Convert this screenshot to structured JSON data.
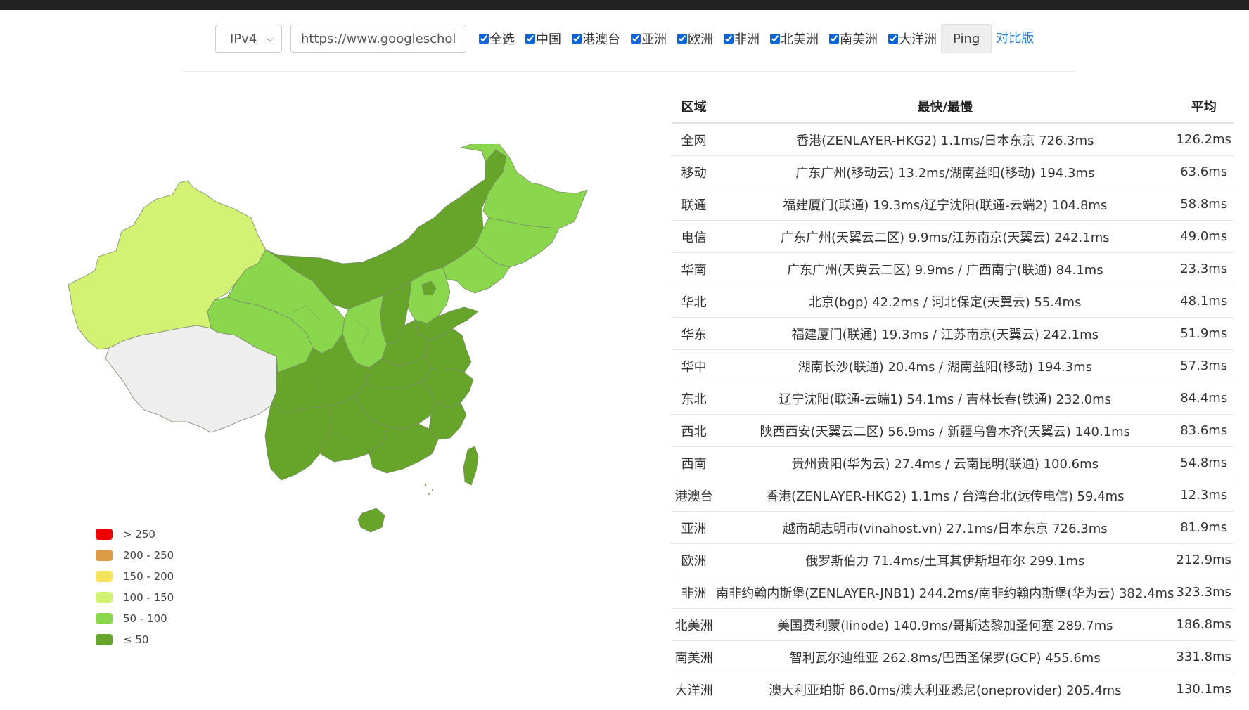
{
  "toolbar": {
    "ip_select": "IPv4",
    "url_value": "https://www.googlescholar.com",
    "checkboxes": [
      "全选",
      "中国",
      "港澳台",
      "亚洲",
      "欧洲",
      "非洲",
      "北美洲",
      "南美洲",
      "大洋洲"
    ],
    "ping_label": "Ping",
    "compare_label": "对比版"
  },
  "colors": {
    "accent_link": "#2b7bd6",
    "band_le50": "#67a52a",
    "band_50_100": "#8ad64c",
    "band_100_150": "#d3f274",
    "no_data": "#eeeeee"
  },
  "legend": [
    {
      "label": "> 250",
      "color": "#ee0000"
    },
    {
      "label": "200 - 250",
      "color": "#dc9a44"
    },
    {
      "label": "150 - 200",
      "color": "#f5e35a"
    },
    {
      "label": "100 - 150",
      "color": "#d3f274"
    },
    {
      "label": "50 - 100",
      "color": "#8ad64c"
    },
    {
      "label": "≤ 50",
      "color": "#67a52a"
    }
  ],
  "table": {
    "headers": {
      "region": "区域",
      "range": "最快/最慢",
      "avg": "平均"
    },
    "rows": [
      {
        "region": "全网",
        "range": "香港(ZENLAYER-HKG2) 1.1ms/日本东京 726.3ms",
        "avg": "126.2ms"
      },
      {
        "region": "移动",
        "range": "广东广州(移动云) 13.2ms/湖南益阳(移动) 194.3ms",
        "avg": "63.6ms"
      },
      {
        "region": "联通",
        "range": "福建厦门(联通) 19.3ms/辽宁沈阳(联通-云端2) 104.8ms",
        "avg": "58.8ms"
      },
      {
        "region": "电信",
        "range": "广东广州(天翼云二区) 9.9ms/江苏南京(天翼云) 242.1ms",
        "avg": "49.0ms"
      },
      {
        "region": "华南",
        "range": "广东广州(天翼云二区) 9.9ms / 广西南宁(联通) 84.1ms",
        "avg": "23.3ms"
      },
      {
        "region": "华北",
        "range": "北京(bgp) 42.2ms / 河北保定(天翼云) 55.4ms",
        "avg": "48.1ms"
      },
      {
        "region": "华东",
        "range": "福建厦门(联通) 19.3ms / 江苏南京(天翼云) 242.1ms",
        "avg": "51.9ms"
      },
      {
        "region": "华中",
        "range": "湖南长沙(联通) 20.4ms / 湖南益阳(移动) 194.3ms",
        "avg": "57.3ms"
      },
      {
        "region": "东北",
        "range": "辽宁沈阳(联通-云端1) 54.1ms / 吉林长春(铁通) 232.0ms",
        "avg": "84.4ms"
      },
      {
        "region": "西北",
        "range": "陕西西安(天翼云二区) 56.9ms / 新疆乌鲁木齐(天翼云) 140.1ms",
        "avg": "83.6ms"
      },
      {
        "region": "西南",
        "range": "贵州贵阳(华为云) 27.4ms / 云南昆明(联通) 100.6ms",
        "avg": "54.8ms"
      },
      {
        "region": "港澳台",
        "range": "香港(ZENLAYER-HKG2) 1.1ms / 台湾台北(远传电信) 59.4ms",
        "avg": "12.3ms"
      },
      {
        "region": "亚洲",
        "range": "越南胡志明市(vinahost.vn) 27.1ms/日本东京 726.3ms",
        "avg": "81.9ms"
      },
      {
        "region": "欧洲",
        "range": "俄罗斯伯力 71.4ms/土耳其伊斯坦布尔 299.1ms",
        "avg": "212.9ms"
      },
      {
        "region": "非洲",
        "range": "南非约翰内斯堡(ZENLAYER-JNB1) 244.2ms/南非约翰内斯堡(华为云) 382.4ms",
        "avg": "323.3ms"
      },
      {
        "region": "北美洲",
        "range": "美国费利蒙(linode) 140.9ms/哥斯达黎加圣何塞 289.7ms",
        "avg": "186.8ms"
      },
      {
        "region": "南美洲",
        "range": "智利瓦尔迪维亚 262.8ms/巴西圣保罗(GCP) 455.6ms",
        "avg": "331.8ms"
      },
      {
        "region": "大洋洲",
        "range": "澳大利亚珀斯 86.0ms/澳大利亚悉尼(oneprovider) 205.4ms",
        "avg": "130.1ms"
      }
    ]
  }
}
